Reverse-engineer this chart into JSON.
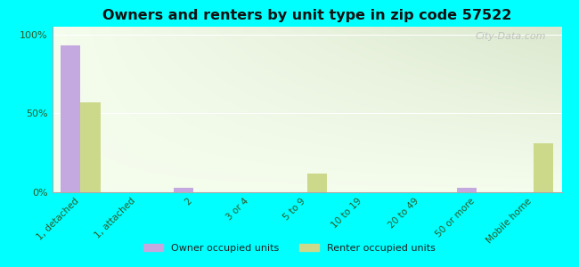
{
  "title": "Owners and renters by unit type in zip code 57522",
  "categories": [
    "1, detached",
    "1, attached",
    "2",
    "3 or 4",
    "5 to 9",
    "10 to 19",
    "20 to 49",
    "50 or more",
    "Mobile home"
  ],
  "owner_values": [
    93,
    0,
    3,
    0,
    0,
    0,
    0,
    3,
    0
  ],
  "renter_values": [
    57,
    0,
    0,
    0,
    12,
    0,
    0,
    0,
    31
  ],
  "owner_color": "#c4a8e0",
  "renter_color": "#ccd98a",
  "background_color": "#00ffff",
  "ylabel_ticks": [
    "0%",
    "50%",
    "100%"
  ],
  "ytick_vals": [
    0,
    50,
    100
  ],
  "bar_width": 0.35,
  "watermark": "City-Data.com",
  "legend_labels": [
    "Owner occupied units",
    "Renter occupied units"
  ]
}
